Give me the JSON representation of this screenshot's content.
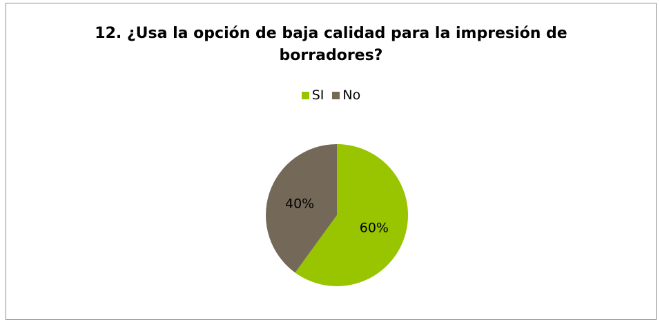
{
  "chart_data": {
    "type": "pie",
    "title": "12. ¿Usa la opción de baja calidad  para la impresión de borradores?",
    "title_lines": [
      "12. ¿Usa la opción de baja calidad  para la impresión de",
      "borradores?"
    ],
    "legend_position": "top",
    "categories": [
      "SI",
      "No"
    ],
    "values": [
      60,
      40
    ],
    "data_labels": [
      "60%",
      "40%"
    ],
    "colors": [
      "#99c400",
      "#746859"
    ]
  }
}
